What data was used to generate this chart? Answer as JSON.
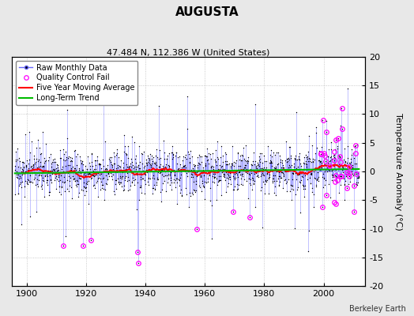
{
  "title": "AUGUSTA",
  "subtitle": "47.484 N, 112.386 W (United States)",
  "ylabel": "Temperature Anomaly (°C)",
  "attribution": "Berkeley Earth",
  "xlim": [
    1895,
    2014
  ],
  "ylim": [
    -20,
    20
  ],
  "xticks": [
    1900,
    1920,
    1940,
    1960,
    1980,
    2000
  ],
  "yticks": [
    -20,
    -15,
    -10,
    -5,
    0,
    5,
    10,
    15,
    20
  ],
  "raw_line_color": "#6666ff",
  "raw_marker_color": "#000000",
  "ma_color": "#ff0000",
  "trend_color": "#00bb00",
  "qc_color": "#ff00ff",
  "bg_color": "#e8e8e8",
  "plot_bg": "#ffffff",
  "title_fontsize": 11,
  "subtitle_fontsize": 8,
  "ylabel_fontsize": 8,
  "tick_fontsize": 8,
  "legend_fontsize": 7,
  "seed": 17,
  "start_year": 1896,
  "end_year": 2011,
  "noise_std": 2.0,
  "trend_slope": 0.005
}
